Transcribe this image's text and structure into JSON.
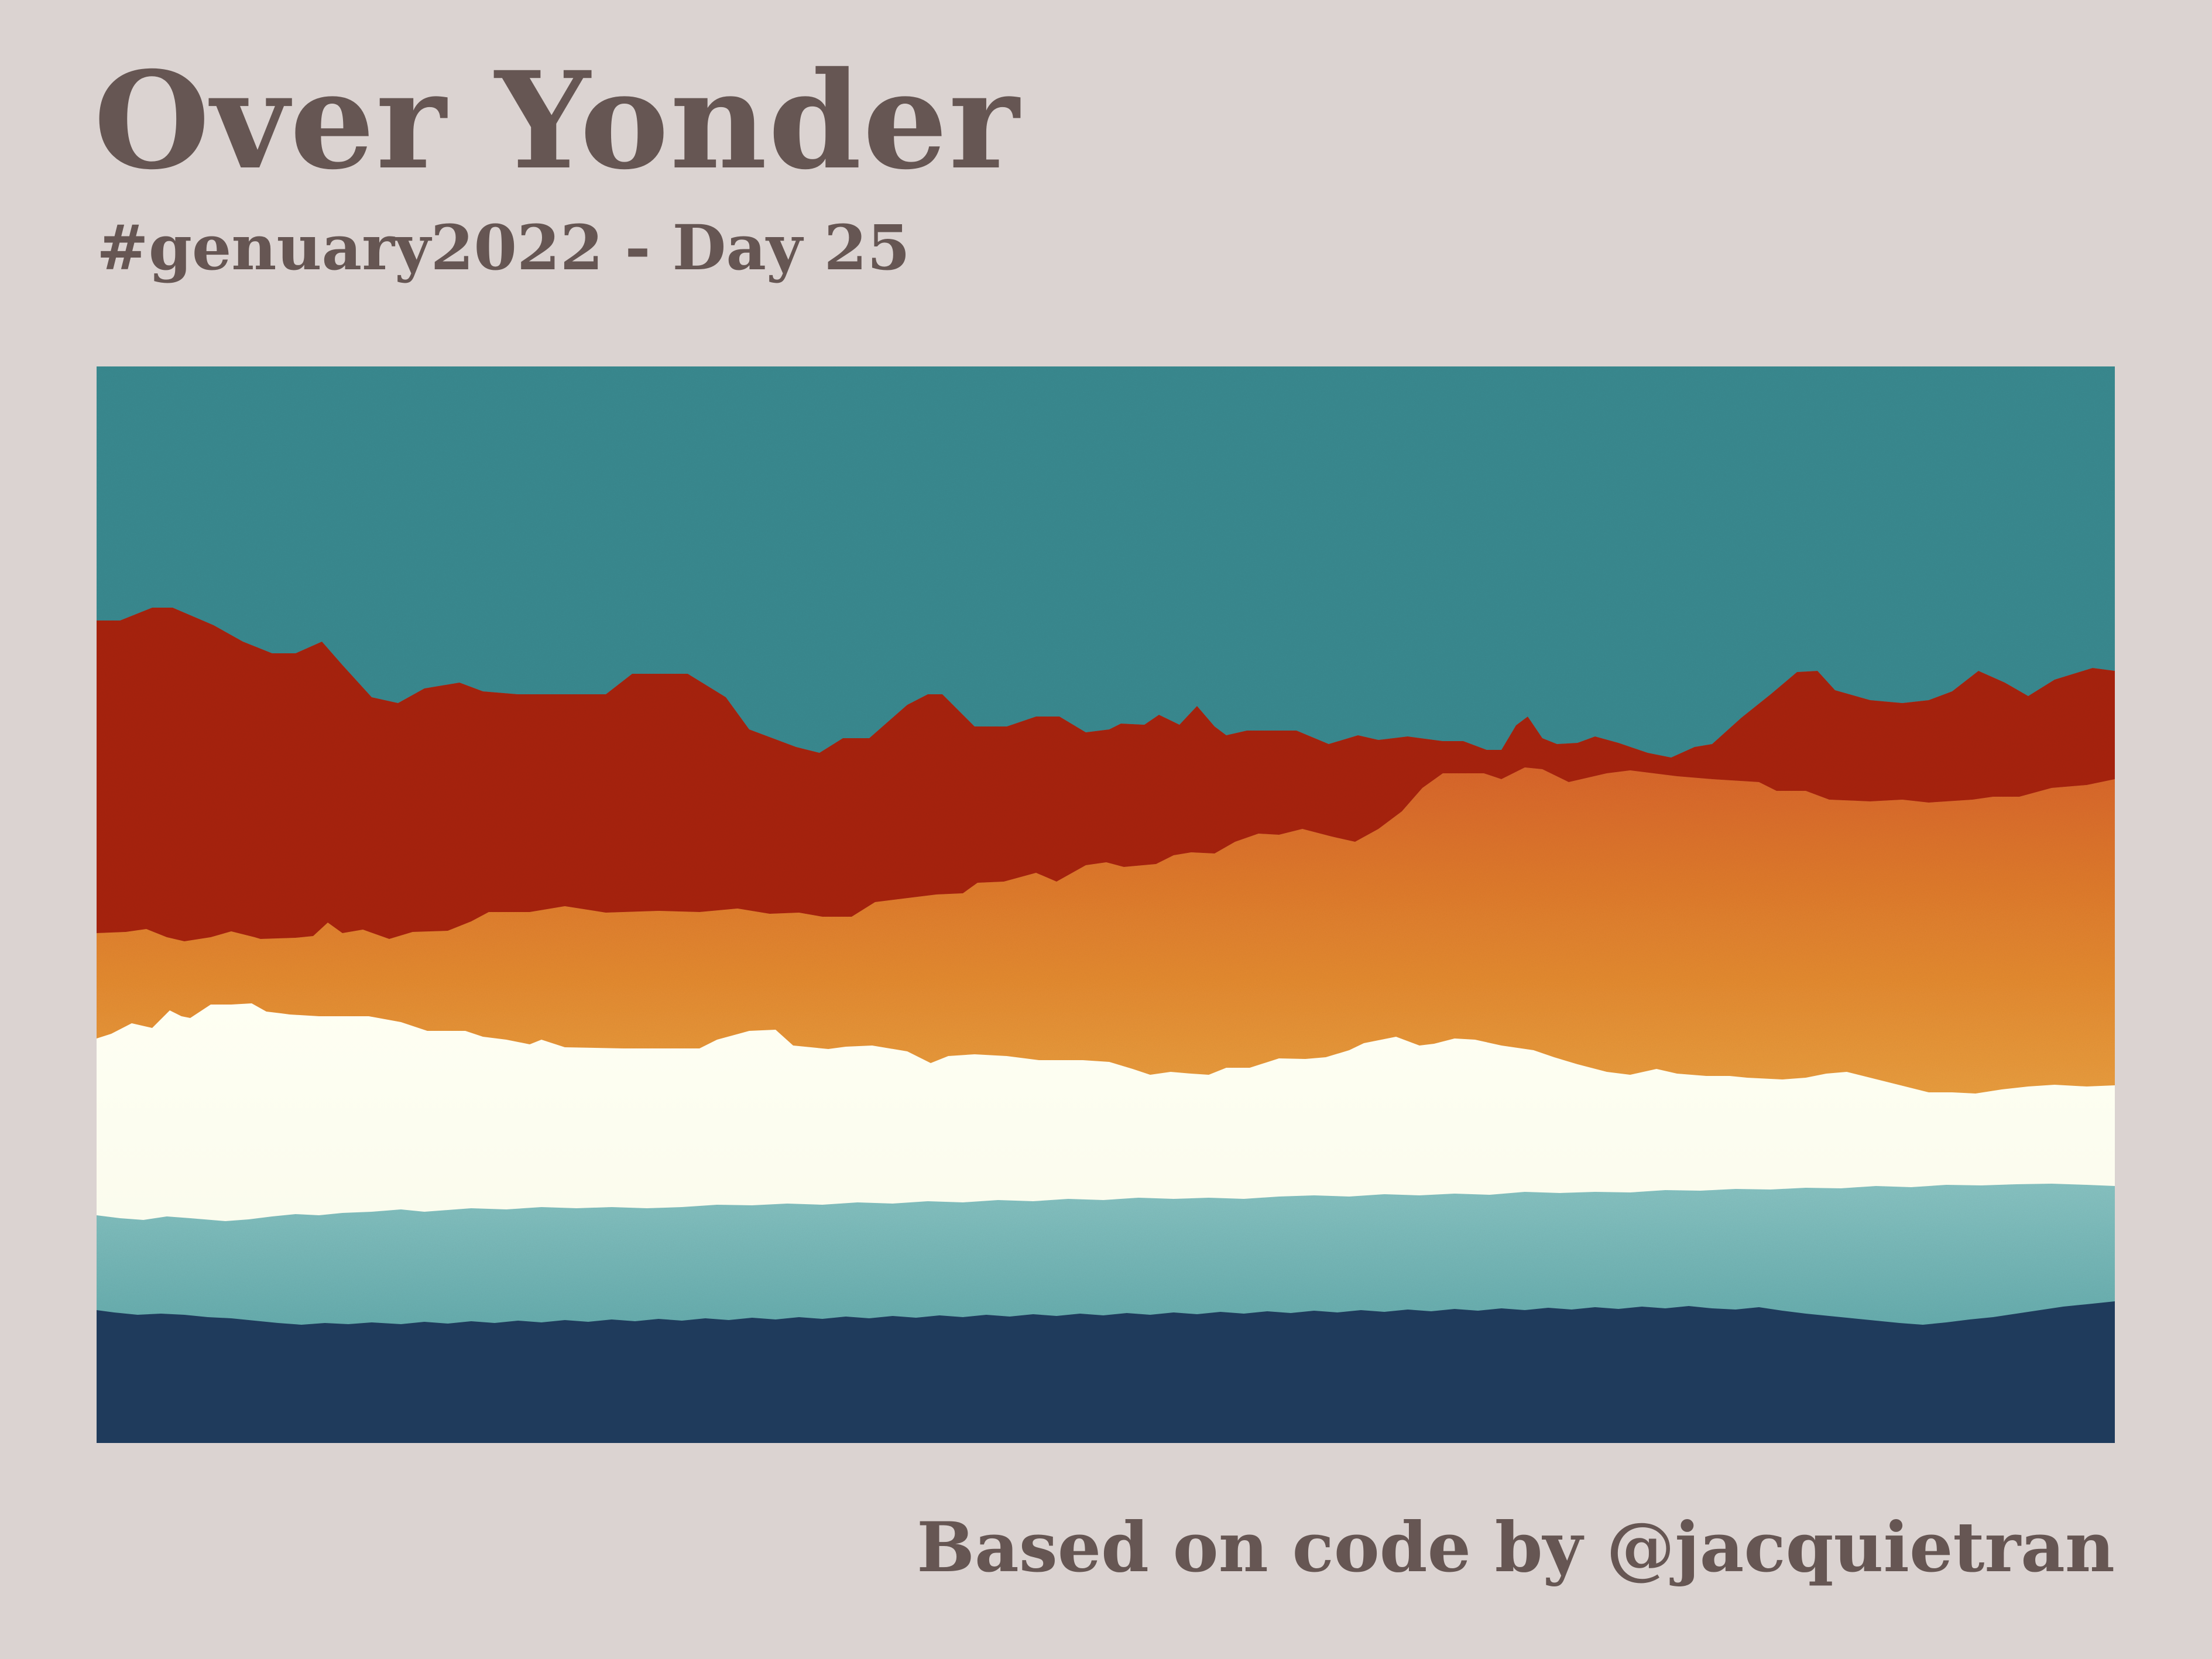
{
  "poster": {
    "title": "Over Yonder",
    "subtitle": "#genuary2022 - Day 25",
    "credit": "Based on code by @jacquietran"
  },
  "artwork": {
    "description_colors": {
      "sky": "#3a8a90",
      "red_layer": "#a8220f",
      "orange_top": "#e07a2a",
      "orange_bottom": "#efb24d",
      "cream": "#fdfdef",
      "teal_top": "#7dbcbc",
      "teal_bottom": "#3f9597",
      "navy": "#1f3b5c"
    }
  }
}
